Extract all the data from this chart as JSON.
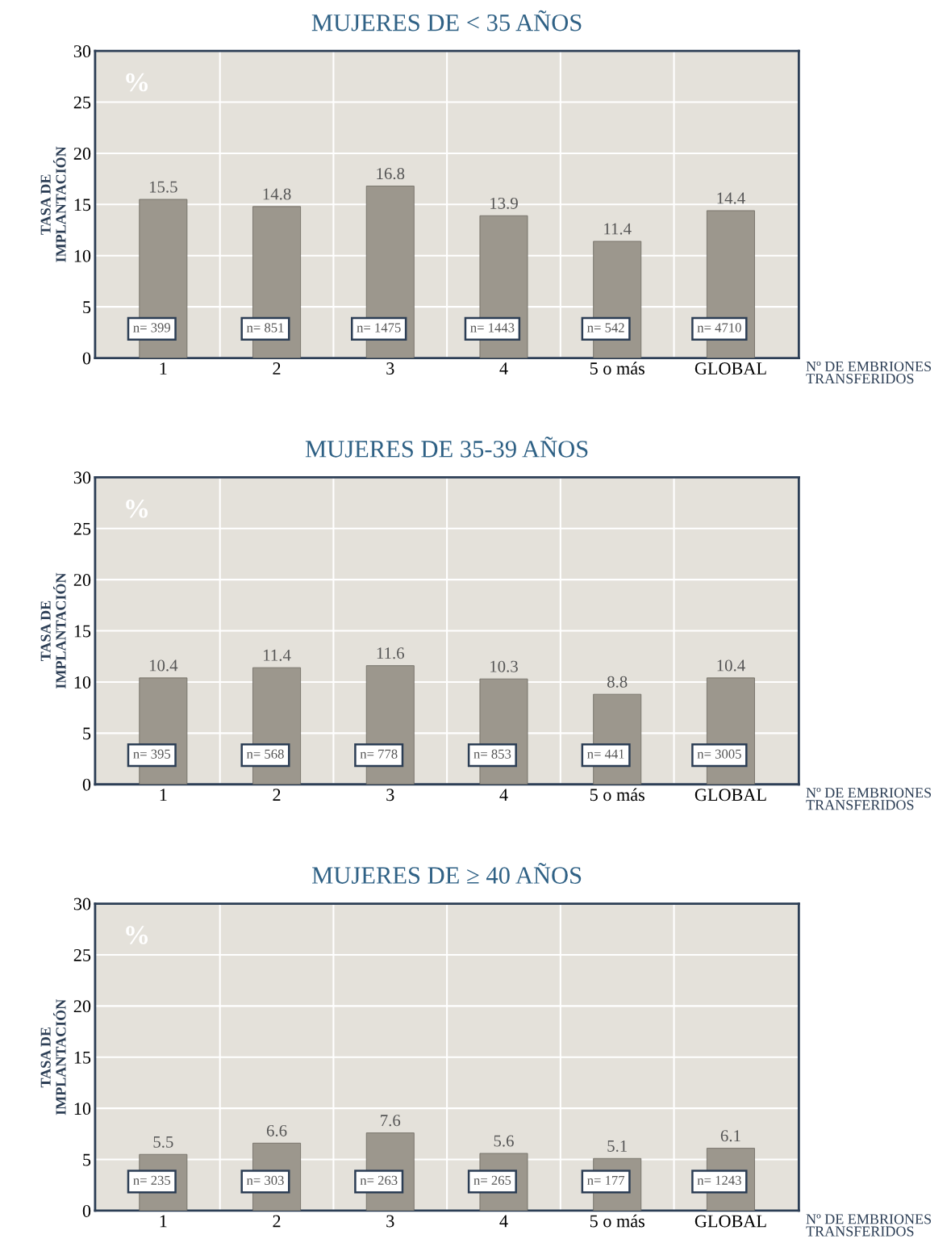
{
  "chart_data": [
    {
      "type": "bar",
      "title": "MUJERES DE < 35 AÑOS",
      "xlabel": "Nº DE EMBRIONES\nTRANSFERIDOS",
      "ylabel": "TASA DE\nIMPLANTACIÓN",
      "categories": [
        "1",
        "2",
        "3",
        "4",
        "5 o más",
        "GLOBAL"
      ],
      "values": [
        15.5,
        14.8,
        16.8,
        13.9,
        11.4,
        14.4
      ],
      "color": "#9c978d",
      "ylim": [
        0,
        30
      ],
      "yticks": [
        0,
        5,
        10,
        15,
        20,
        25,
        30
      ],
      "grid": "y",
      "data_labels": true,
      "annotations": [
        "%",
        "n= 399",
        "n= 851",
        "n= 1475",
        "n= 1443",
        "n= 542",
        "n= 4710"
      ]
    },
    {
      "type": "bar",
      "title": "MUJERES DE 35-39 AÑOS",
      "xlabel": "Nº DE EMBRIONES\nTRANSFERIDOS",
      "ylabel": "TASA DE\nIMPLANTACIÓN",
      "categories": [
        "1",
        "2",
        "3",
        "4",
        "5 o más",
        "GLOBAL"
      ],
      "values": [
        10.4,
        11.4,
        11.6,
        10.3,
        8.8,
        10.4
      ],
      "color": "#9c978d",
      "ylim": [
        0,
        30
      ],
      "yticks": [
        0,
        5,
        10,
        15,
        20,
        25,
        30
      ],
      "grid": "y",
      "data_labels": true,
      "annotations": [
        "%",
        "n= 395",
        "n= 568",
        "n= 778",
        "n= 853",
        "n= 441",
        "n= 3005"
      ]
    },
    {
      "type": "bar",
      "title": "MUJERES DE ≥ 40 AÑOS",
      "xlabel": "Nº DE EMBRIONES\nTRANSFERIDOS",
      "ylabel": "TASA DE\nIMPLANTACIÓN",
      "categories": [
        "1",
        "2",
        "3",
        "4",
        "5 o más",
        "GLOBAL"
      ],
      "values": [
        5.5,
        6.6,
        7.6,
        5.6,
        5.1,
        6.1
      ],
      "color": "#9c978d",
      "ylim": [
        0,
        30
      ],
      "yticks": [
        0,
        5,
        10,
        15,
        20,
        25,
        30
      ],
      "grid": "y",
      "data_labels": true,
      "annotations": [
        "%",
        "n= 235",
        "n= 303",
        "n= 263",
        "n= 265",
        "n= 177",
        "n= 1243"
      ]
    }
  ]
}
